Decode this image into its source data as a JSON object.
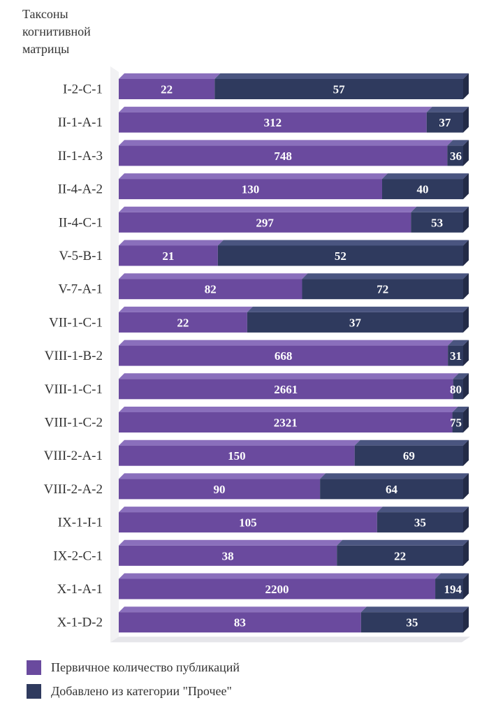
{
  "chart_data": {
    "type": "bar",
    "orientation": "horizontal",
    "stacked": true,
    "normalized": true,
    "axis_title": "Таксоны\nкогнитивной\nматрицы",
    "categories": [
      "I-2-C-1",
      "II-1-A-1",
      "II-1-A-3",
      "II-4-A-2",
      "II-4-C-1",
      "V-5-B-1",
      "V-7-A-1",
      "VII-1-C-1",
      "VIII-1-B-2",
      "VIII-1-C-1",
      "VIII-1-C-2",
      "VIII-2-A-1",
      "VIII-2-A-2",
      "IX-1-I-1",
      "IX-2-C-1",
      "X-1-A-1",
      "X-1-D-2"
    ],
    "series": [
      {
        "name": "Первичное количество публикаций",
        "color": "#6a4a9e",
        "values": [
          22,
          312,
          748,
          130,
          297,
          21,
          82,
          22,
          668,
          2661,
          2321,
          150,
          90,
          105,
          38,
          2200,
          83
        ]
      },
      {
        "name": "Добавлено из категории \"Прочее\"",
        "color": "#2f3a5e",
        "values": [
          57,
          37,
          36,
          40,
          53,
          52,
          72,
          37,
          31,
          80,
          75,
          69,
          64,
          35,
          22,
          194,
          35
        ]
      }
    ],
    "legend_position": "bottom",
    "grid": false
  }
}
